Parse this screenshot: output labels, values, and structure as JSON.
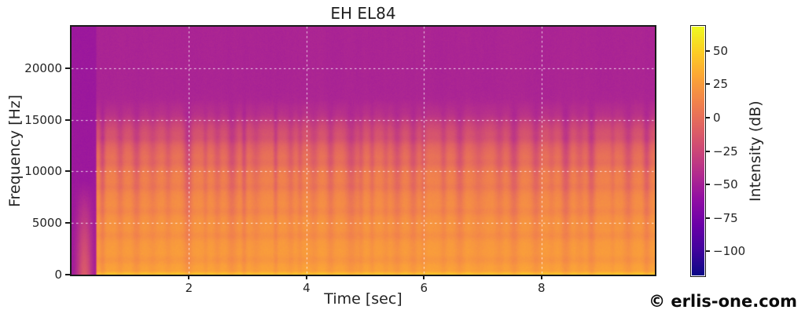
{
  "chart_data": {
    "type": "heatmap",
    "subtype": "spectrogram",
    "title": "EH EL84",
    "xlabel": "Time [sec]",
    "ylabel": "Frequency [Hz]",
    "xlim": [
      0,
      9.93
    ],
    "ylim": [
      0,
      24000
    ],
    "x_ticks": [
      2,
      4,
      6,
      8
    ],
    "y_ticks": [
      0,
      5000,
      10000,
      15000,
      20000
    ],
    "grid": true,
    "grid_style": "white-dashed",
    "colorbar": {
      "label": "Intensity (dB)",
      "ticks": [
        50,
        25,
        0,
        -25,
        -50,
        -75,
        -100
      ],
      "vmin": -118,
      "vmax": 68,
      "colormap": "plasma",
      "colormap_stops": [
        [
          0.0,
          "#0d0887"
        ],
        [
          0.1,
          "#41049d"
        ],
        [
          0.2,
          "#6a00a8"
        ],
        [
          0.3,
          "#8f0da4"
        ],
        [
          0.4,
          "#b12a90"
        ],
        [
          0.5,
          "#cc4778"
        ],
        [
          0.6,
          "#e16462"
        ],
        [
          0.7,
          "#f2844b"
        ],
        [
          0.8,
          "#fca636"
        ],
        [
          0.9,
          "#fcce25"
        ],
        [
          1.0,
          "#f0f921"
        ]
      ]
    },
    "signal_model": {
      "seed": 1337,
      "silence_end_sec": 0.405,
      "noise_floor_db": -47,
      "silence_floor_db": -55,
      "frequency_envelope_db": [
        [
          0,
          30
        ],
        [
          2000,
          26
        ],
        [
          4000,
          23
        ],
        [
          6000,
          20
        ],
        [
          8000,
          15
        ],
        [
          10000,
          9
        ],
        [
          11500,
          2
        ],
        [
          12500,
          -5
        ],
        [
          13500,
          -14
        ],
        [
          14500,
          -24
        ],
        [
          15000,
          -30
        ],
        [
          16000,
          -40
        ],
        [
          17000,
          -46
        ],
        [
          18000,
          -47
        ],
        [
          24000,
          -47
        ]
      ],
      "fundamental_boost_db": 15,
      "fundamental_cutoff_hz": 300,
      "harmonic_band_period_hz": 2350,
      "harmonic_band_depth_db": 4.5,
      "note_gap_mean_spacing_sec": 0.27,
      "noise_db_peak_to_peak": 3.2,
      "attack_blob": {
        "t_center": 0.22,
        "t_sigma": 0.09,
        "f_cutoff_hz": 9000,
        "peak_db": -13,
        "falloff_db": 42
      }
    }
  },
  "watermark": "© erlis-one.com",
  "colors": {
    "text": "#242424",
    "spine": "#1a1a1a",
    "grid": "rgba(255,255,255,0.8)",
    "background": "#ffffff"
  }
}
